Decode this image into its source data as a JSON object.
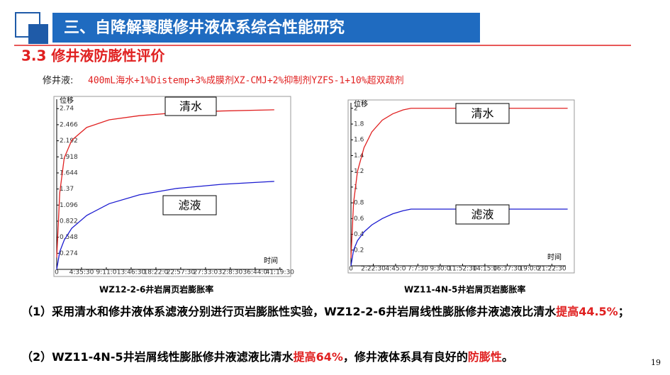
{
  "header": {
    "title": "三、自降解聚膜修井液体系综合性能研究",
    "section": "3.3 修井液防膨性评价"
  },
  "formula": {
    "label": "修井液:",
    "text": "400mL海水+1%Distemp+3%成膜剂XZ-CMJ+2%抑制剂YZFS-1+10%超双疏剂"
  },
  "chart_data": [
    {
      "type": "line",
      "title": "WZ12-2-6井岩屑页岩膨胀率",
      "y_label": "位移",
      "x_label": "时间",
      "x": [
        0,
        2000,
        5000,
        10000,
        20000,
        35000,
        55000,
        80000,
        110000,
        145000
      ],
      "series": [
        {
          "name": "清水",
          "color": "#e02020",
          "values": [
            0.2,
            1.3,
            1.9,
            2.2,
            2.42,
            2.55,
            2.62,
            2.67,
            2.7,
            2.72
          ]
        },
        {
          "name": "滤液",
          "color": "#1a1ad0",
          "values": [
            0,
            0.3,
            0.5,
            0.7,
            0.92,
            1.12,
            1.27,
            1.38,
            1.45,
            1.5
          ]
        }
      ],
      "xlim": [
        0,
        155000
      ],
      "ylim": [
        0,
        2.9
      ],
      "xticks": [
        0,
        {
          "value": 16530,
          "label": "4:35:30"
        },
        {
          "value": 33060,
          "label": "9:11:0"
        },
        {
          "value": 49590,
          "label": "13:46:30"
        },
        {
          "value": 66120,
          "label": "18:22:0"
        },
        {
          "value": 82650,
          "label": "22:57:30"
        },
        {
          "value": 99180,
          "label": "27:33:0"
        },
        {
          "value": 115710,
          "label": "32:8:30"
        },
        {
          "value": 132240,
          "label": "36:44:0"
        },
        {
          "value": 148770,
          "label": "41:19:30"
        }
      ],
      "yticks": [
        0,
        0.274,
        0.548,
        0.822,
        1.096,
        1.37,
        1.644,
        1.918,
        2.192,
        2.466,
        2.74
      ]
    },
    {
      "type": "line",
      "title": "WZ11-4N-5井岩屑页岩膨胀率",
      "y_label": "位移",
      "x_label": "时间",
      "x": [
        0,
        1000,
        2500,
        5000,
        8000,
        12000,
        16000,
        20000,
        23000,
        83000
      ],
      "series": [
        {
          "name": "清水",
          "color": "#e02020",
          "values": [
            0.1,
            0.8,
            1.2,
            1.5,
            1.7,
            1.85,
            1.93,
            1.98,
            2,
            2
          ]
        },
        {
          "name": "滤液",
          "color": "#1a1ad0",
          "values": [
            0,
            0.2,
            0.32,
            0.43,
            0.52,
            0.6,
            0.66,
            0.7,
            0.72,
            0.72
          ]
        }
      ],
      "xlim": [
        0,
        85000
      ],
      "ylim": [
        0,
        2.07
      ],
      "xticks": [
        0,
        {
          "value": 8550,
          "label": "2:22:30"
        },
        {
          "value": 17100,
          "label": "4:45:0"
        },
        {
          "value": 25650,
          "label": "7:7:30"
        },
        {
          "value": 34200,
          "label": "9:30:0"
        },
        {
          "value": 42750,
          "label": "11:52:30"
        },
        {
          "value": 51300,
          "label": "14:15:0"
        },
        {
          "value": 59850,
          "label": "16:37:30"
        },
        {
          "value": 68400,
          "label": "19:0:0"
        },
        {
          "value": 76950,
          "label": "21:22:30"
        }
      ],
      "yticks": [
        0,
        0.2,
        0.4,
        0.6,
        0.8,
        1,
        1.2,
        1.4,
        1.6,
        1.8,
        2
      ]
    }
  ],
  "paragraphs": [
    [
      "（1）采用清水和修井液体系滤液分别进行页岩膨胀性实验，WZ12-2-6井岩屑线性膨胀修井液滤液比清水",
      "提高44.5%",
      "；"
    ],
    [
      "（2）WZ11-4N-5井岩屑线性膨胀修井液滤液比清水",
      "提高64%",
      "，修井液体系具有良好的",
      "防膨性",
      "。"
    ]
  ],
  "page_number": "19"
}
